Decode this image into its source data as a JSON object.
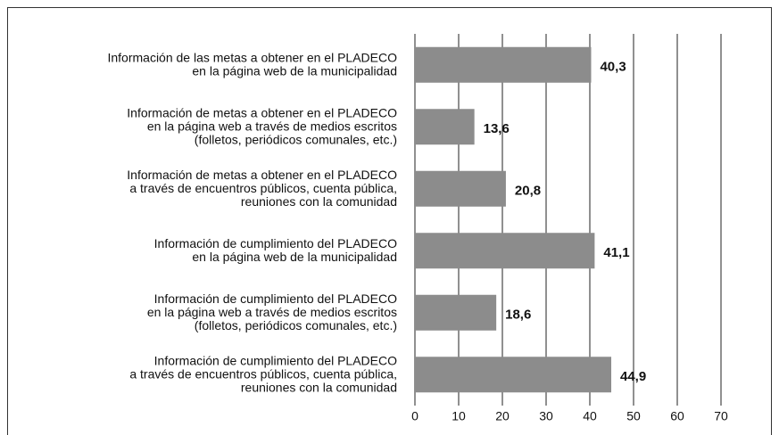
{
  "chart_data": {
    "type": "bar",
    "orientation": "horizontal",
    "categories": [
      [
        "Información de las metas a obtener en el PLADECO",
        "en la página web de la municipalidad"
      ],
      [
        "Información de metas a obtener en el PLADECO",
        "en la página web a través de medios escritos",
        "(folletos, periódicos comunales, etc.)"
      ],
      [
        "Información de metas  a obtener en el PLADECO",
        "a través de encuentros públicos, cuenta pública,",
        "reuniones con la comunidad"
      ],
      [
        "Información de cumplimiento del PLADECO",
        "en la página web de la municipalidad"
      ],
      [
        "Información de cumplimiento del PLADECO",
        "en la página web a través de medios escritos",
        "(folletos, periódicos comunales, etc.)"
      ],
      [
        "Información de cumplimiento del PLADECO",
        "a través de encuentros públicos, cuenta pública,",
        "reuniones con la comunidad"
      ]
    ],
    "values": [
      40.3,
      13.6,
      20.8,
      41.1,
      18.6,
      44.9
    ],
    "value_labels": [
      "40,3",
      "13,6",
      "20,8",
      "41,1",
      "18,6",
      "44,9"
    ],
    "color": "#8c8c8c",
    "xlim": [
      0,
      70
    ],
    "xticks": [
      0,
      10,
      20,
      30,
      40,
      50,
      60,
      70
    ],
    "grid": true
  }
}
